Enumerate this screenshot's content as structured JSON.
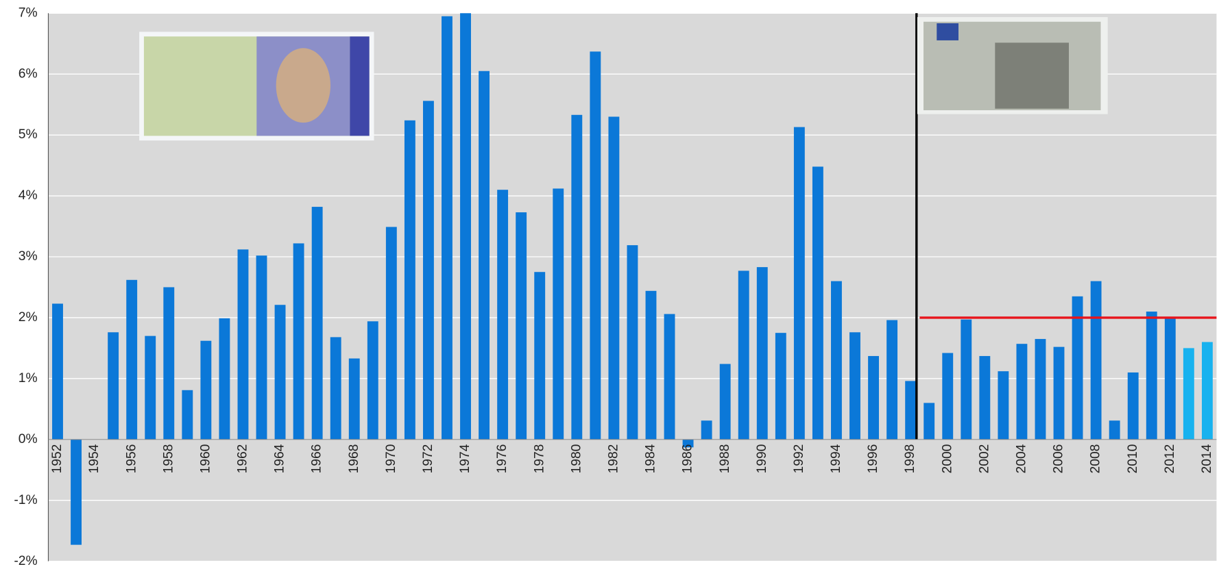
{
  "chart_data": {
    "type": "bar",
    "categories": [
      "1952",
      null,
      "1954",
      null,
      "1956",
      null,
      "1958",
      null,
      "1960",
      null,
      "1962",
      null,
      "1964",
      null,
      "1966",
      null,
      "1968",
      null,
      "1970",
      null,
      "1972",
      null,
      "1974",
      null,
      "1976",
      null,
      "1978",
      null,
      "1980",
      null,
      "1982",
      null,
      "1984",
      null,
      "1986",
      null,
      "1988",
      null,
      "1990",
      null,
      "1992",
      null,
      "1994",
      null,
      "1996",
      null,
      "1998",
      null,
      "2000",
      null,
      "2002",
      null,
      "2004",
      null,
      "2006",
      null,
      "2008",
      null,
      "2010",
      null,
      "2012",
      null,
      "2014"
    ],
    "values": [
      2.23,
      -1.73,
      0,
      1.76,
      2.62,
      1.7,
      2.5,
      0.81,
      1.62,
      1.99,
      3.12,
      3.02,
      2.21,
      3.22,
      3.82,
      1.68,
      1.33,
      1.94,
      3.49,
      5.24,
      5.56,
      6.95,
      7.0,
      6.05,
      4.1,
      3.73,
      2.75,
      4.12,
      5.33,
      6.37,
      5.3,
      3.19,
      2.44,
      2.06,
      -0.13,
      0.31,
      1.24,
      2.77,
      2.83,
      1.75,
      5.13,
      4.48,
      2.6,
      1.76,
      1.37,
      1.96,
      0.96,
      0.6,
      1.42,
      1.97,
      1.37,
      1.12,
      1.57,
      1.65,
      1.52,
      2.35,
      2.6,
      0.31,
      1.1,
      2.1,
      2.0,
      1.5,
      1.6
    ],
    "color": "#0b78d8",
    "forecast_color": "#18b2ef",
    "forecast_from": 61,
    "ylim": [
      -2,
      7
    ],
    "yticks": [
      {
        "value": -2,
        "label": "-2%"
      },
      {
        "value": -1,
        "label": "-1%"
      },
      {
        "value": 0,
        "label": "0%"
      },
      {
        "value": 1,
        "label": "1%"
      },
      {
        "value": 2,
        "label": "2%"
      },
      {
        "value": 3,
        "label": "3%"
      },
      {
        "value": 4,
        "label": "4%"
      },
      {
        "value": 5,
        "label": "5%"
      },
      {
        "value": 6,
        "label": "6%"
      },
      {
        "value": 7,
        "label": "7%"
      }
    ],
    "grid": true,
    "target_line": {
      "value": 2,
      "color": "#e8141b"
    }
  }
}
